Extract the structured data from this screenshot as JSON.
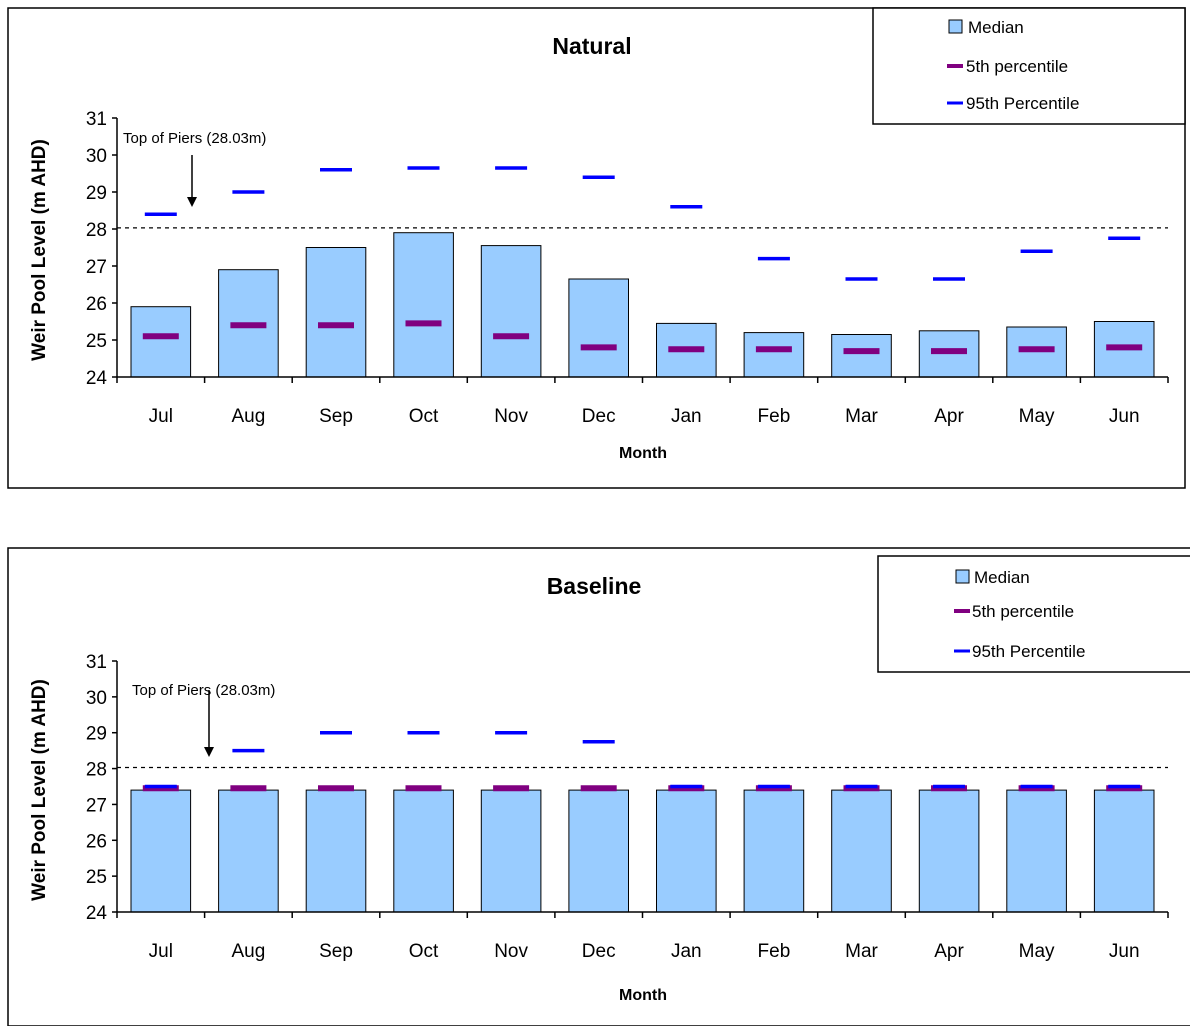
{
  "colors": {
    "bar_fill": "#99ccff",
    "bar_stroke": "#000000",
    "p5": "#800080",
    "p95": "#0000ff",
    "ref_line": "#000000"
  },
  "chart_data": [
    {
      "id": "natural",
      "type": "bar",
      "title": "Natural",
      "xlabel": "Month",
      "ylabel": "Weir Pool Level (m AHD)",
      "ylim": [
        24,
        31
      ],
      "yticks": [
        "24",
        "25",
        "26",
        "27",
        "28",
        "29",
        "30",
        "31"
      ],
      "categories": [
        "Jul",
        "Aug",
        "Sep",
        "Oct",
        "Nov",
        "Dec",
        "Jan",
        "Feb",
        "Mar",
        "Apr",
        "May",
        "Jun"
      ],
      "series": [
        {
          "name": "Median",
          "kind": "bar",
          "values": [
            25.9,
            26.9,
            27.5,
            27.9,
            27.55,
            26.65,
            25.45,
            25.2,
            25.15,
            25.25,
            25.35,
            25.5
          ]
        },
        {
          "name": "5th percentile",
          "kind": "marker",
          "values": [
            25.1,
            25.4,
            25.4,
            25.45,
            25.1,
            24.8,
            24.75,
            24.75,
            24.7,
            24.7,
            24.75,
            24.8
          ]
        },
        {
          "name": "95th Percentile",
          "kind": "marker",
          "values": [
            28.4,
            29.0,
            29.6,
            29.65,
            29.65,
            29.4,
            28.6,
            27.2,
            26.65,
            26.65,
            27.4,
            27.75
          ]
        }
      ],
      "reference_line": {
        "value": 28.03,
        "label": "Top of Piers (28.03m)"
      },
      "legend": {
        "position": "top-right",
        "entries": [
          "Median",
          "5th percentile",
          "95th Percentile"
        ]
      },
      "grid": false
    },
    {
      "id": "baseline",
      "type": "bar",
      "title": "Baseline",
      "xlabel": "Month",
      "ylabel": "Weir Pool Level (m AHD)",
      "ylim": [
        24,
        31
      ],
      "yticks": [
        "24",
        "25",
        "26",
        "27",
        "28",
        "29",
        "30",
        "31"
      ],
      "categories": [
        "Jul",
        "Aug",
        "Sep",
        "Oct",
        "Nov",
        "Dec",
        "Jan",
        "Feb",
        "Mar",
        "Apr",
        "May",
        "Jun"
      ],
      "series": [
        {
          "name": "Median",
          "kind": "bar",
          "values": [
            27.4,
            27.4,
            27.4,
            27.4,
            27.4,
            27.4,
            27.4,
            27.4,
            27.4,
            27.4,
            27.4,
            27.4
          ]
        },
        {
          "name": "5th percentile",
          "kind": "marker",
          "values": [
            27.45,
            27.45,
            27.45,
            27.45,
            27.45,
            27.45,
            27.45,
            27.45,
            27.45,
            27.45,
            27.45,
            27.45
          ]
        },
        {
          "name": "95th Percentile",
          "kind": "marker",
          "values": [
            27.5,
            28.5,
            29.0,
            29.0,
            29.0,
            28.75,
            27.5,
            27.5,
            27.5,
            27.5,
            27.5,
            27.5
          ]
        }
      ],
      "reference_line": {
        "value": 28.03,
        "label": "Top of Piers (28.03m)"
      },
      "legend": {
        "position": "top-right",
        "entries": [
          "Median",
          "5th percentile",
          "95th Percentile"
        ]
      },
      "grid": false
    }
  ]
}
